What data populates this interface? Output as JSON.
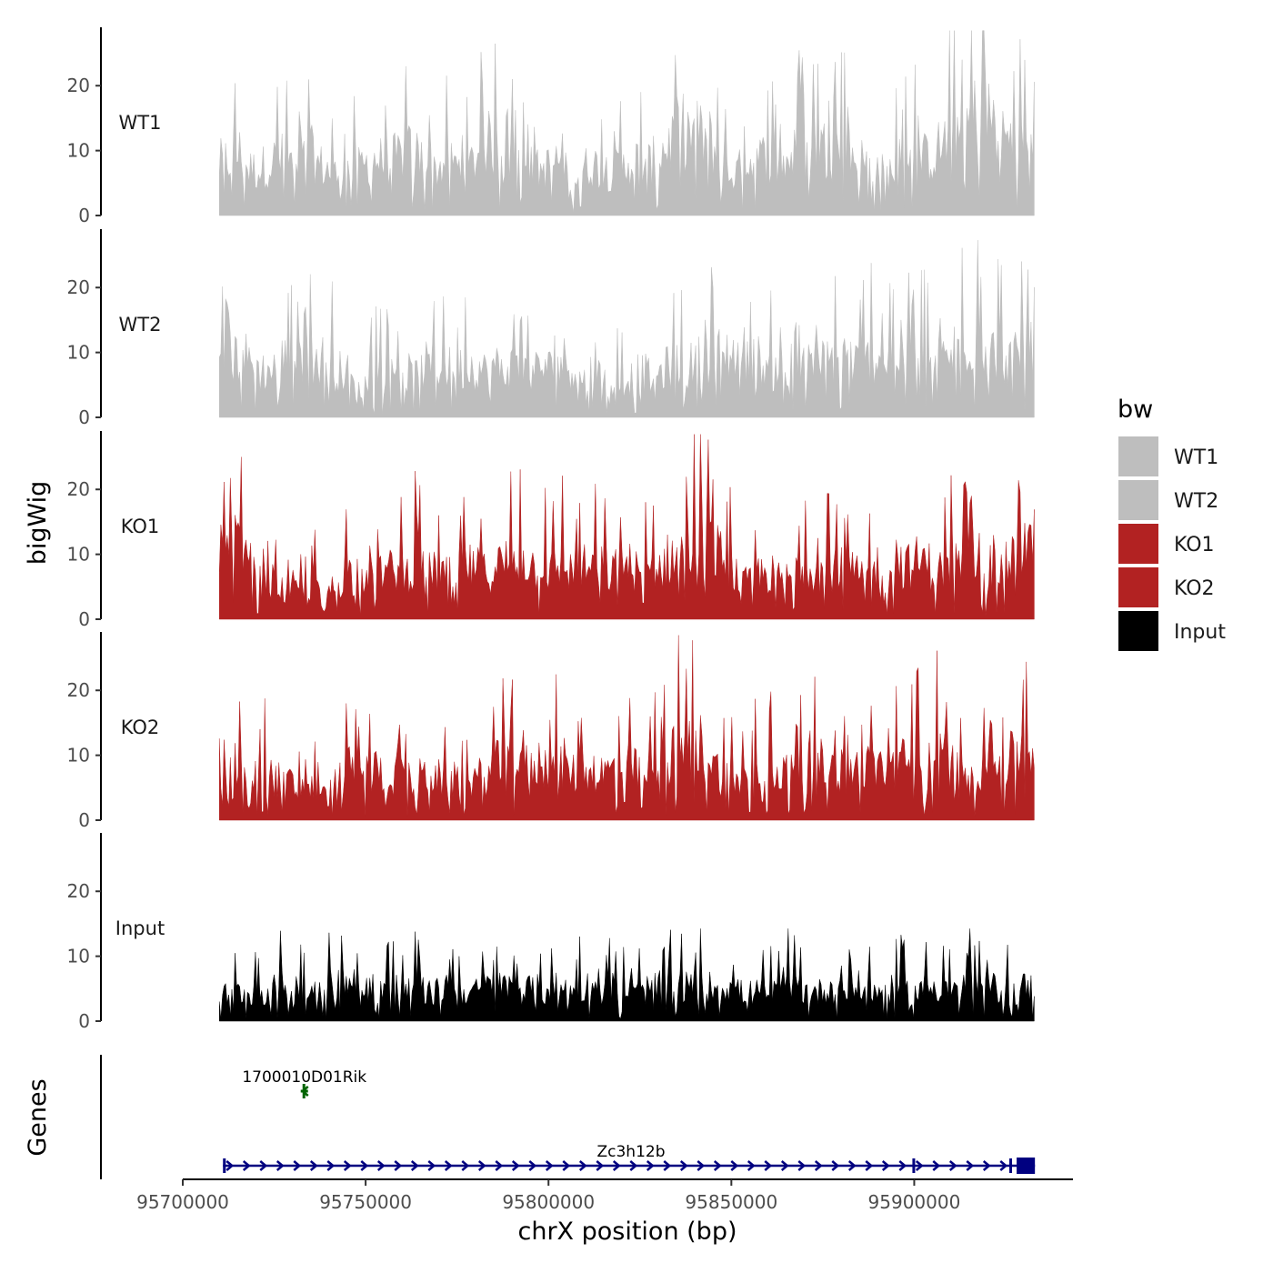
{
  "chart_data": {
    "type": "area",
    "title": "",
    "ylabel": "bigWig",
    "genes_label": "Genes",
    "xlabel": "chrX position (bp)",
    "xlim": [
      95700000,
      95943400
    ],
    "data_range": [
      95710000,
      95932800
    ],
    "x_ticks": [
      {
        "value": 95700000,
        "label": "95700000"
      },
      {
        "value": 95750000,
        "label": "95750000"
      },
      {
        "value": 95800000,
        "label": "95800000"
      },
      {
        "value": 95850000,
        "label": "95850000"
      },
      {
        "value": 95900000,
        "label": "95900000"
      }
    ],
    "ylim": [
      0,
      29
    ],
    "y_ticks": [
      {
        "value": 0,
        "label": "0"
      },
      {
        "value": 10,
        "label": "10"
      },
      {
        "value": 20,
        "label": "20"
      }
    ],
    "series": [
      {
        "name": "WT1",
        "color": "#bebebe",
        "values": [
          9,
          10,
          11,
          8,
          8,
          9,
          10,
          10,
          6,
          12,
          9,
          8,
          7,
          8,
          8,
          9,
          10,
          9,
          10,
          11,
          11,
          9,
          8,
          9,
          9,
          7,
          10,
          13,
          12,
          9,
          10,
          10,
          8,
          8,
          9,
          10,
          7,
          8,
          9,
          8,
          8,
          8,
          10,
          9,
          9,
          11,
          13,
          15,
          14,
          14,
          13,
          9,
          7,
          8,
          9,
          10,
          10,
          8,
          10,
          11,
          10,
          13,
          11,
          12,
          11,
          10,
          9,
          8,
          7,
          9,
          11,
          10,
          10,
          11,
          13,
          15,
          16,
          17,
          18,
          16,
          14,
          12,
          12,
          13
        ]
      },
      {
        "name": "WT2",
        "color": "#bebebe",
        "values": [
          8,
          10,
          11,
          10,
          8,
          8,
          9,
          11,
          9,
          11,
          10,
          10,
          8,
          8,
          4,
          6,
          8,
          7,
          8,
          8,
          7,
          9,
          9,
          9,
          8,
          9,
          9,
          8,
          9,
          8,
          9,
          8,
          8,
          9,
          8,
          10,
          9,
          7,
          8,
          7,
          6,
          6,
          7,
          8,
          7,
          8,
          9,
          9,
          9,
          10,
          10,
          11,
          11,
          12,
          10,
          10,
          8,
          9,
          5,
          8,
          9,
          9,
          10,
          10,
          11,
          9,
          10,
          11,
          9,
          12,
          11,
          10,
          10,
          9,
          10,
          12,
          13,
          14,
          13,
          11,
          10,
          10,
          12,
          11
        ]
      },
      {
        "name": "KO1",
        "color": "#b22222",
        "values": [
          12,
          10,
          14,
          8,
          7,
          5,
          6,
          4,
          5,
          4,
          7,
          5,
          6,
          9,
          6,
          9,
          9,
          8,
          9,
          8,
          10,
          9,
          8,
          8,
          7,
          9,
          9,
          8,
          9,
          10,
          10,
          11,
          9,
          10,
          8,
          10,
          8,
          9,
          9,
          9,
          8,
          10,
          9,
          8,
          9,
          9,
          11,
          12,
          13,
          15,
          13,
          11,
          9,
          7,
          6,
          8,
          8,
          7,
          7,
          9,
          10,
          8,
          9,
          9,
          8,
          8,
          7,
          10,
          8,
          11,
          9,
          10,
          10,
          8,
          9,
          10,
          9,
          8,
          7,
          8,
          9,
          11,
          13,
          14
        ]
      },
      {
        "name": "KO2",
        "color": "#b22222",
        "values": [
          10,
          11,
          9,
          8,
          8,
          8,
          7,
          7,
          5,
          6,
          5,
          4,
          7,
          9,
          8,
          8,
          9,
          7,
          8,
          7,
          7,
          8,
          8,
          6,
          7,
          7,
          7,
          8,
          9,
          11,
          10,
          11,
          10,
          10,
          10,
          10,
          8,
          9,
          9,
          8,
          9,
          9,
          9,
          8,
          8,
          10,
          11,
          13,
          12,
          13,
          11,
          8,
          7,
          7,
          7,
          9,
          9,
          9,
          8,
          9,
          9,
          10,
          9,
          9,
          8,
          9,
          9,
          10,
          8,
          10,
          10,
          11,
          10,
          11,
          11,
          9,
          10,
          9,
          9,
          9,
          10,
          11,
          13,
          12
        ]
      },
      {
        "name": "Input",
        "color": "#000000",
        "values": [
          4,
          5,
          5,
          5,
          5,
          5,
          6,
          6,
          6,
          5,
          6,
          7,
          7,
          6,
          7,
          6,
          6,
          6,
          6,
          5,
          6,
          5,
          5,
          6,
          6,
          5,
          5,
          6,
          6,
          6,
          6,
          5,
          6,
          5,
          6,
          6,
          5,
          6,
          6,
          5,
          6,
          5,
          5,
          5,
          6,
          6,
          6,
          6,
          6,
          6,
          6,
          6,
          6,
          5,
          5,
          5,
          5,
          5,
          6,
          6,
          5,
          5,
          6,
          5,
          5,
          6,
          6,
          5,
          5,
          6,
          5,
          5,
          6,
          6,
          6,
          5,
          6,
          6,
          5,
          6,
          5,
          5,
          6,
          6
        ]
      }
    ],
    "legend": {
      "title": "bw",
      "position": "right",
      "entries": [
        {
          "name": "WT1",
          "color": "#bebebe"
        },
        {
          "name": "WT2",
          "color": "#bebebe"
        },
        {
          "name": "KO1",
          "color": "#b22222"
        },
        {
          "name": "KO2",
          "color": "#b22222"
        },
        {
          "name": "Input",
          "color": "#000000"
        }
      ]
    },
    "genes": [
      {
        "name": "1700010D01Rik",
        "start": 95733000,
        "end": 95733500,
        "strand": "-",
        "color": "#006400"
      },
      {
        "name": "Zc3h12b",
        "start": 95711000,
        "end": 95933000,
        "strand": "+",
        "color": "#000080",
        "exons": [
          [
            95711000,
            95711600
          ],
          [
            95899500,
            95900000
          ],
          [
            95926000,
            95926500
          ],
          [
            95928000,
            95933000
          ]
        ]
      }
    ]
  }
}
